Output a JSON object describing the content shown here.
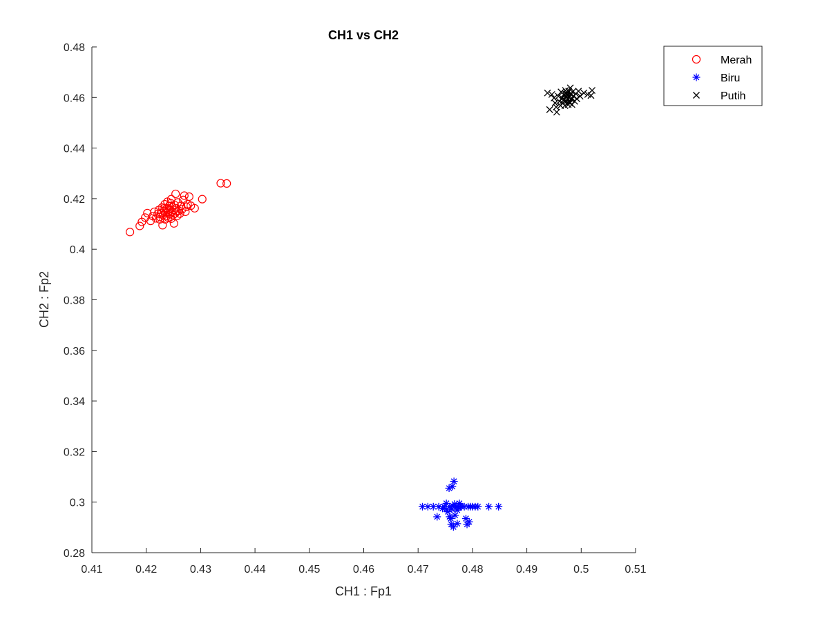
{
  "chart_data": {
    "type": "scatter",
    "title": "CH1 vs CH2",
    "xlabel": "CH1 : Fp1",
    "ylabel": "CH2 : Fp2",
    "xlim": [
      0.41,
      0.51
    ],
    "ylim": [
      0.28,
      0.48
    ],
    "xticks": [
      0.41,
      0.42,
      0.43,
      0.44,
      0.45,
      0.46,
      0.47,
      0.48,
      0.49,
      0.5,
      0.51
    ],
    "xtick_labels": [
      "0.41",
      "0.42",
      "0.43",
      "0.44",
      "0.45",
      "0.46",
      "0.47",
      "0.48",
      "0.49",
      "0.5",
      "0.51"
    ],
    "yticks": [
      0.28,
      0.3,
      0.32,
      0.34,
      0.36,
      0.38,
      0.4,
      0.42,
      0.44,
      0.46,
      0.48
    ],
    "ytick_labels": [
      "0.28",
      "0.3",
      "0.32",
      "0.34",
      "0.36",
      "0.38",
      "0.4",
      "0.42",
      "0.44",
      "0.46",
      "0.48"
    ],
    "grid": false,
    "legend_position": "top-right-outside",
    "series": [
      {
        "name": "Merah",
        "marker": "circle",
        "color": "#ff0000",
        "points": [
          [
            0.417,
            0.4068
          ],
          [
            0.4188,
            0.4092
          ],
          [
            0.4192,
            0.4108
          ],
          [
            0.4198,
            0.4125
          ],
          [
            0.4202,
            0.4143
          ],
          [
            0.4208,
            0.4112
          ],
          [
            0.4212,
            0.4131
          ],
          [
            0.4215,
            0.4148
          ],
          [
            0.4218,
            0.4122
          ],
          [
            0.4221,
            0.4139
          ],
          [
            0.4223,
            0.4155
          ],
          [
            0.4225,
            0.4128
          ],
          [
            0.4227,
            0.4142
          ],
          [
            0.4229,
            0.4165
          ],
          [
            0.423,
            0.4095
          ],
          [
            0.4231,
            0.4135
          ],
          [
            0.4233,
            0.4152
          ],
          [
            0.4234,
            0.4178
          ],
          [
            0.4235,
            0.4118
          ],
          [
            0.4236,
            0.4145
          ],
          [
            0.4238,
            0.4162
          ],
          [
            0.4239,
            0.4188
          ],
          [
            0.424,
            0.4125
          ],
          [
            0.4241,
            0.4149
          ],
          [
            0.4242,
            0.4171
          ],
          [
            0.4243,
            0.4138
          ],
          [
            0.4244,
            0.4158
          ],
          [
            0.4245,
            0.4182
          ],
          [
            0.4246,
            0.4121
          ],
          [
            0.4247,
            0.4146
          ],
          [
            0.4248,
            0.4166
          ],
          [
            0.4249,
            0.4135
          ],
          [
            0.425,
            0.4155
          ],
          [
            0.4251,
            0.4102
          ],
          [
            0.4252,
            0.4175
          ],
          [
            0.4253,
            0.4141
          ],
          [
            0.4254,
            0.4219
          ],
          [
            0.4255,
            0.4162
          ],
          [
            0.4257,
            0.4132
          ],
          [
            0.4258,
            0.4185
          ],
          [
            0.426,
            0.4152
          ],
          [
            0.4262,
            0.4141
          ],
          [
            0.4264,
            0.4172
          ],
          [
            0.4266,
            0.4158
          ],
          [
            0.4268,
            0.4195
          ],
          [
            0.427,
            0.4212
          ],
          [
            0.4272,
            0.4148
          ],
          [
            0.4274,
            0.4168
          ],
          [
            0.4276,
            0.4178
          ],
          [
            0.4279,
            0.4208
          ],
          [
            0.4282,
            0.4172
          ],
          [
            0.4289,
            0.4162
          ],
          [
            0.4303,
            0.4198
          ],
          [
            0.4337,
            0.4261
          ],
          [
            0.4348,
            0.426
          ],
          [
            0.4225,
            0.4118
          ],
          [
            0.4237,
            0.4131
          ],
          [
            0.4256,
            0.4149
          ],
          [
            0.4232,
            0.4161
          ],
          [
            0.4246,
            0.4198
          ]
        ]
      },
      {
        "name": "Biru",
        "marker": "asterisk",
        "color": "#0000ff",
        "points": [
          [
            0.4708,
            0.2982
          ],
          [
            0.4718,
            0.2982
          ],
          [
            0.4728,
            0.2982
          ],
          [
            0.4735,
            0.2942
          ],
          [
            0.4738,
            0.2982
          ],
          [
            0.4745,
            0.2975
          ],
          [
            0.4748,
            0.2982
          ],
          [
            0.4752,
            0.2995
          ],
          [
            0.4755,
            0.2962
          ],
          [
            0.4757,
            0.3055
          ],
          [
            0.4758,
            0.2982
          ],
          [
            0.476,
            0.2935
          ],
          [
            0.4761,
            0.2912
          ],
          [
            0.4762,
            0.2972
          ],
          [
            0.4763,
            0.3062
          ],
          [
            0.4764,
            0.2985
          ],
          [
            0.4765,
            0.2902
          ],
          [
            0.4766,
            0.3082
          ],
          [
            0.4767,
            0.2992
          ],
          [
            0.4768,
            0.2948
          ],
          [
            0.477,
            0.2982
          ],
          [
            0.4772,
            0.2915
          ],
          [
            0.4774,
            0.2978
          ],
          [
            0.4776,
            0.2995
          ],
          [
            0.4778,
            0.2985
          ],
          [
            0.478,
            0.2982
          ],
          [
            0.4785,
            0.2982
          ],
          [
            0.4788,
            0.2935
          ],
          [
            0.479,
            0.2912
          ],
          [
            0.4792,
            0.2982
          ],
          [
            0.4794,
            0.2922
          ],
          [
            0.4796,
            0.2982
          ],
          [
            0.48,
            0.2982
          ],
          [
            0.4805,
            0.2982
          ],
          [
            0.481,
            0.2982
          ],
          [
            0.483,
            0.2982
          ],
          [
            0.4848,
            0.2982
          ],
          [
            0.4758,
            0.2942
          ],
          [
            0.4772,
            0.2968
          ],
          [
            0.4752,
            0.2972
          ]
        ]
      },
      {
        "name": "Putih",
        "marker": "x",
        "color": "#000000",
        "points": [
          [
            0.4938,
            0.4618
          ],
          [
            0.4942,
            0.4552
          ],
          [
            0.4946,
            0.4612
          ],
          [
            0.495,
            0.4598
          ],
          [
            0.4952,
            0.4578
          ],
          [
            0.4954,
            0.4562
          ],
          [
            0.4955,
            0.4542
          ],
          [
            0.4958,
            0.4605
          ],
          [
            0.496,
            0.4585
          ],
          [
            0.4962,
            0.4568
          ],
          [
            0.4963,
            0.4622
          ],
          [
            0.4965,
            0.4598
          ],
          [
            0.4966,
            0.4578
          ],
          [
            0.4968,
            0.4612
          ],
          [
            0.4969,
            0.4592
          ],
          [
            0.497,
            0.4568
          ],
          [
            0.4971,
            0.4628
          ],
          [
            0.4972,
            0.4605
          ],
          [
            0.4973,
            0.4585
          ],
          [
            0.4974,
            0.4615
          ],
          [
            0.4975,
            0.4595
          ],
          [
            0.4976,
            0.4572
          ],
          [
            0.4977,
            0.4625
          ],
          [
            0.4978,
            0.4602
          ],
          [
            0.4979,
            0.4582
          ],
          [
            0.498,
            0.4638
          ],
          [
            0.4981,
            0.4612
          ],
          [
            0.4982,
            0.4592
          ],
          [
            0.4983,
            0.4572
          ],
          [
            0.4984,
            0.4622
          ],
          [
            0.4986,
            0.4605
          ],
          [
            0.4988,
            0.4585
          ],
          [
            0.499,
            0.4615
          ],
          [
            0.4992,
            0.4595
          ],
          [
            0.4995,
            0.4625
          ],
          [
            0.4998,
            0.4605
          ],
          [
            0.5005,
            0.4618
          ],
          [
            0.5012,
            0.4612
          ],
          [
            0.5018,
            0.4608
          ],
          [
            0.502,
            0.4628
          ],
          [
            0.4967,
            0.4588
          ],
          [
            0.4975,
            0.4608
          ],
          [
            0.4983,
            0.4598
          ],
          [
            0.4971,
            0.4615
          ],
          [
            0.4979,
            0.4578
          ]
        ]
      }
    ]
  }
}
